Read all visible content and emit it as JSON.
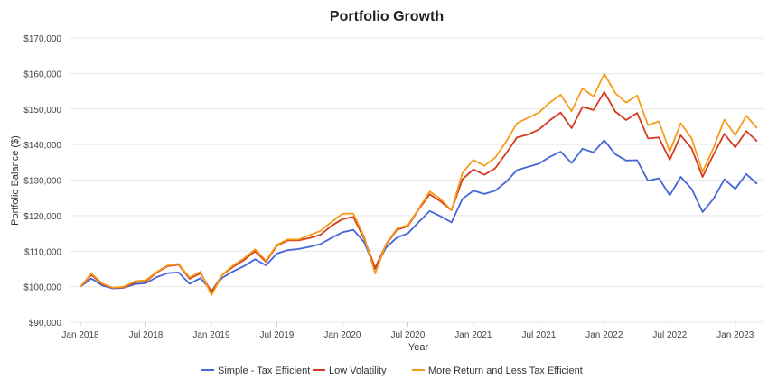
{
  "chart_data": {
    "type": "line",
    "title": "Portfolio Growth",
    "xlabel": "Year",
    "ylabel": "Portfolio Balance ($)",
    "ylim": [
      90000,
      170000
    ],
    "yticks": [
      "$90,000",
      "$100,000",
      "$110,000",
      "$120,000",
      "$130,000",
      "$140,000",
      "$150,000",
      "$160,000",
      "$170,000"
    ],
    "xticks": [
      "Jan 2018",
      "Jul 2018",
      "Jan 2019",
      "Jul 2019",
      "Jan 2020",
      "Jul 2020",
      "Jan 2021",
      "Jul 2021",
      "Jan 2022",
      "Jul 2022",
      "Jan 2023"
    ],
    "x_start": "2018-01",
    "x_frequency": "monthly",
    "grid": true,
    "legend_position": "bottom",
    "series": [
      {
        "name": "Simple - Tax Efficient",
        "color": "#4566d6",
        "values": [
          100000,
          102300,
          100300,
          99500,
          99700,
          100700,
          101000,
          102700,
          103800,
          104000,
          100800,
          102400,
          98800,
          102500,
          104300,
          105800,
          107700,
          106000,
          109300,
          110300,
          110600,
          111200,
          112000,
          113700,
          115300,
          116000,
          112500,
          105000,
          111000,
          113800,
          115000,
          118200,
          121300,
          119800,
          118100,
          124700,
          127000,
          126100,
          127000,
          129500,
          132800,
          133700,
          134600,
          136500,
          138000,
          134800,
          138800,
          137800,
          141200,
          137300,
          135500,
          135600,
          129800,
          130500,
          125700,
          130900,
          127500,
          121000,
          124700,
          130200,
          127500,
          131700,
          128900
        ]
      },
      {
        "name": "Low Volatility",
        "color": "#d63b1f",
        "values": [
          100000,
          103300,
          100700,
          99700,
          99800,
          101200,
          101500,
          104000,
          105800,
          106200,
          102200,
          103800,
          98500,
          103300,
          105600,
          107500,
          110000,
          107000,
          111500,
          113000,
          113000,
          113700,
          114600,
          117100,
          119000,
          119600,
          113500,
          105300,
          111800,
          116000,
          117000,
          121800,
          126000,
          124000,
          121500,
          130200,
          133000,
          131500,
          133300,
          137500,
          142000,
          142800,
          144200,
          146800,
          149000,
          144600,
          150600,
          149700,
          154800,
          149300,
          146900,
          148900,
          141700,
          142000,
          135700,
          142600,
          138900,
          130900,
          137100,
          143000,
          139200,
          143800,
          140900
        ]
      },
      {
        "name": "More Return and Less Tax Efficient",
        "color": "#f59d1b",
        "values": [
          100000,
          103700,
          100900,
          99700,
          100000,
          101500,
          101800,
          104200,
          106000,
          106400,
          102600,
          104200,
          97600,
          103300,
          106000,
          108000,
          110500,
          107300,
          111800,
          113300,
          113300,
          114500,
          115700,
          118200,
          120500,
          120600,
          114000,
          103700,
          112000,
          116300,
          117300,
          122000,
          126800,
          124700,
          121500,
          132000,
          135700,
          134000,
          136300,
          140800,
          146000,
          147500,
          149000,
          151800,
          154000,
          149400,
          155800,
          153500,
          159900,
          154500,
          151800,
          153800,
          145500,
          146500,
          138000,
          146000,
          141700,
          132300,
          139000,
          147000,
          142600,
          148100,
          144600
        ]
      }
    ]
  }
}
